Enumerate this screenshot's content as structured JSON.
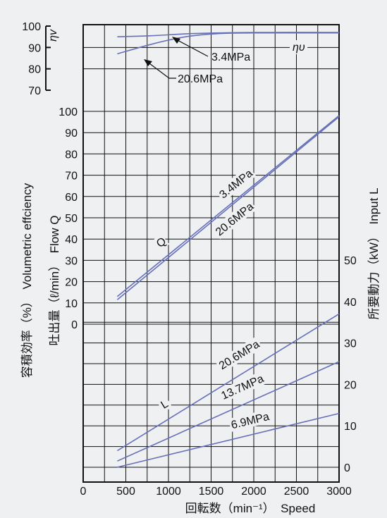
{
  "chart_data": {
    "type": "line",
    "colors": {
      "curve": "#6670b8",
      "grid": "#111111",
      "background": "#eef0f2"
    },
    "x_axis": {
      "range": [
        0,
        3000
      ],
      "ticks": [
        0,
        500,
        1000,
        1500,
        2000,
        2500,
        3000
      ],
      "label": "回転数（min⁻¹）　Speed"
    },
    "eff_axis": {
      "range": [
        70,
        100
      ],
      "ticks": [
        100,
        90,
        80,
        70
      ],
      "unit_label": "ηv"
    },
    "flow_axis": {
      "range": [
        0,
        100
      ],
      "ticks": [
        100,
        90,
        80,
        70,
        60,
        50,
        40,
        30,
        20,
        10,
        0
      ]
    },
    "power_axis": {
      "range": [
        0,
        50
      ],
      "ticks": [
        50,
        40,
        30,
        20,
        10,
        0
      ]
    },
    "left_label_1": "容積効率（%）　Volumetric effciency",
    "left_label_2": "吐出量（ℓ/min）　Flow Q",
    "right_label": "所要動力（kW）　Input L",
    "efficiency_series": [
      {
        "name": "3.4MPa",
        "x": [
          400,
          800,
          1300,
          2000,
          3000
        ],
        "y": [
          95,
          95.5,
          96.5,
          97,
          97
        ]
      },
      {
        "name": "20.6MPa",
        "x": [
          400,
          800,
          1200,
          1600,
          2000,
          3000
        ],
        "y": [
          87,
          91.5,
          95,
          96.5,
          96.8,
          96.8
        ]
      }
    ],
    "efficiency_label": "ηυ",
    "flow_series": [
      {
        "name": "3.4MPa",
        "x": [
          400,
          3000
        ],
        "y": [
          13,
          98
        ]
      },
      {
        "name": "20.6MPa",
        "x": [
          400,
          3000
        ],
        "y": [
          11.5,
          97.5
        ]
      }
    ],
    "flow_label": "Q",
    "power_series": [
      {
        "name": "20.6MPa",
        "x": [
          400,
          3000
        ],
        "y": [
          4,
          37
        ]
      },
      {
        "name": "13.7MPa",
        "x": [
          400,
          3000
        ],
        "y": [
          1.5,
          25.5
        ]
      },
      {
        "name": "6.9MPa",
        "x": [
          400,
          3000
        ],
        "y": [
          0,
          13
        ]
      }
    ],
    "power_label": "L"
  }
}
